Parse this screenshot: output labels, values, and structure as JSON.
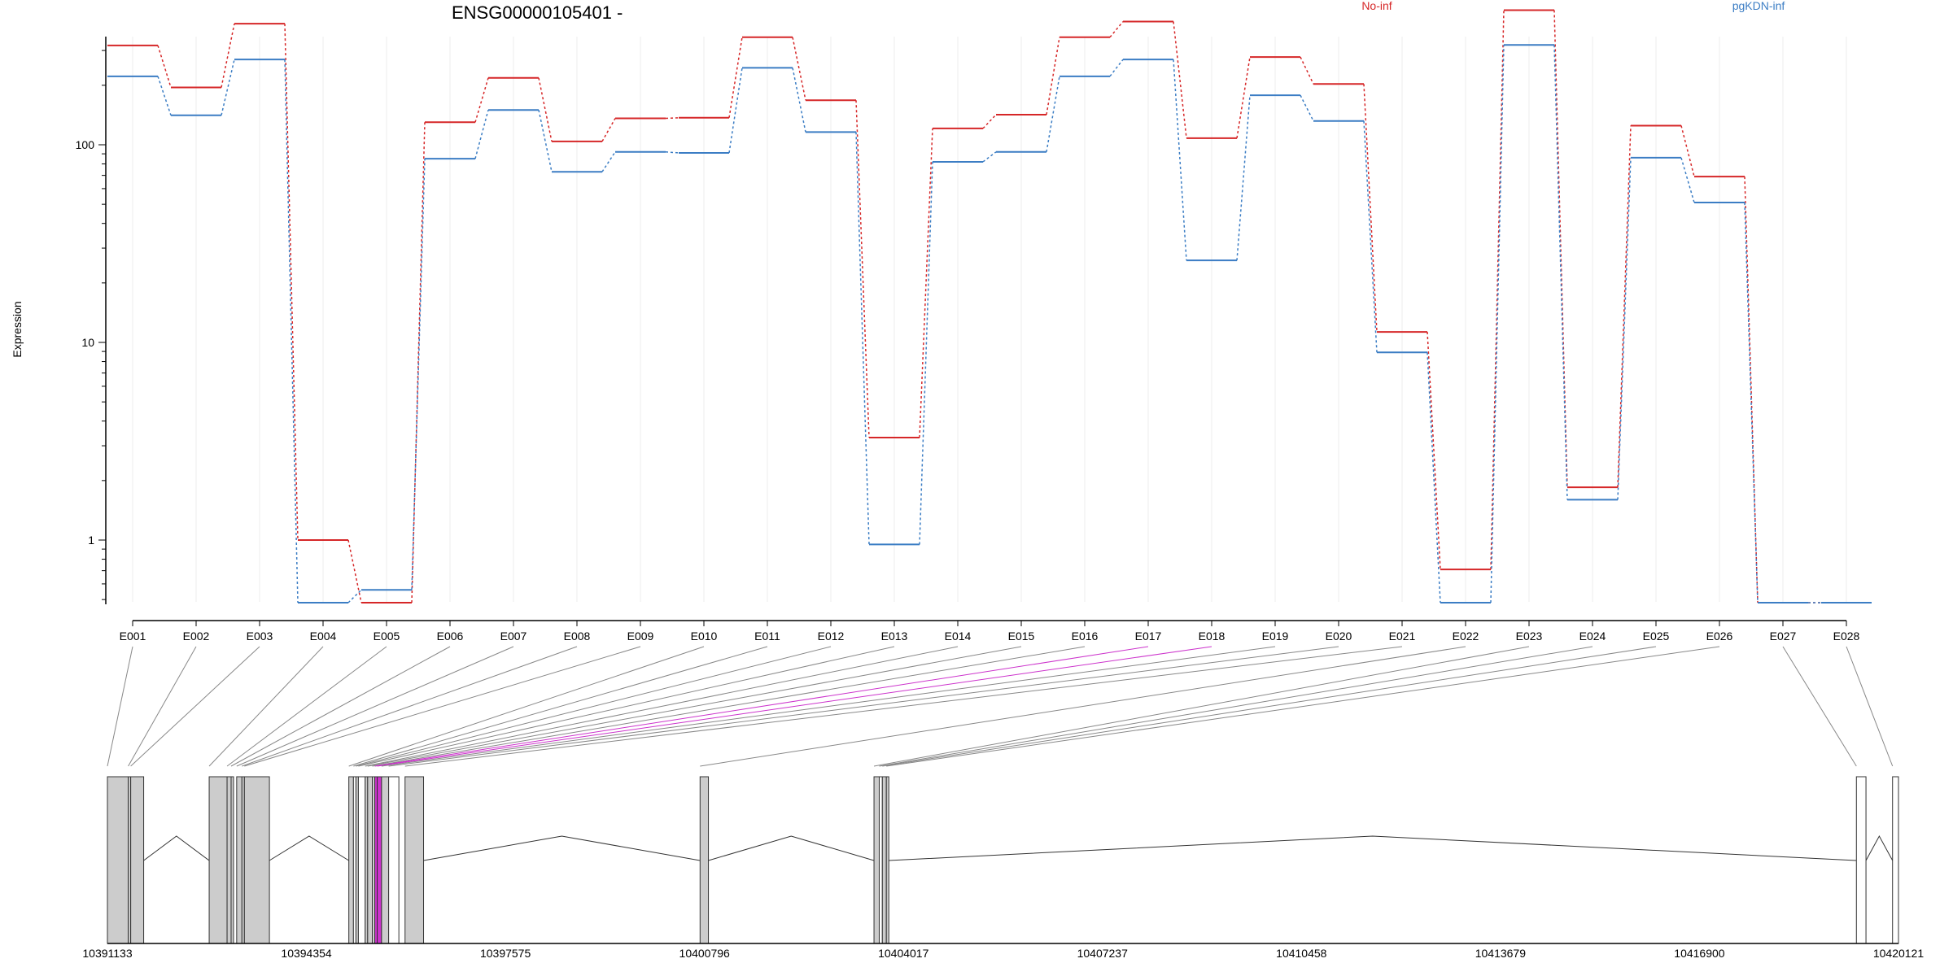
{
  "chart_data": {
    "type": "line",
    "title": "ENSG00000105401 -",
    "ylabel": "Expression",
    "y_scale": "log",
    "yticks": [
      1,
      10,
      100
    ],
    "grid": "vertical",
    "legend_position": "top",
    "categories": [
      "E001",
      "E002",
      "E003",
      "E004",
      "E005",
      "E006",
      "E007",
      "E008",
      "E009",
      "E010",
      "E011",
      "E012",
      "E013",
      "E014",
      "E015",
      "E016",
      "E017",
      "E018",
      "E019",
      "E020",
      "E021",
      "E022",
      "E023",
      "E024",
      "E025",
      "E026",
      "E027",
      "E028"
    ],
    "series": [
      {
        "name": "No-inf",
        "color": "#d62728",
        "values": [
          318,
          195,
          410,
          1.0,
          0.45,
          130,
          218,
          104,
          136,
          137,
          350,
          168,
          3.3,
          121,
          142,
          350,
          420,
          108,
          278,
          203,
          11.3,
          0.71,
          480,
          1.85,
          125,
          69,
          0.45,
          0.45
        ]
      },
      {
        "name": "pgKDN-inf",
        "color": "#3b7dc4",
        "values": [
          222,
          141,
          270,
          0.45,
          0.56,
          85,
          150,
          73,
          92,
          91,
          245,
          116,
          0.95,
          82,
          92,
          222,
          270,
          26,
          178,
          132,
          8.9,
          0.45,
          320,
          1.6,
          86,
          51,
          0.45,
          0.45
        ]
      }
    ],
    "genomic_axis": {
      "ticks": [
        "10391133",
        "10394354",
        "10397575",
        "10400796",
        "10404017",
        "10407237",
        "10410458",
        "10413679",
        "10416900",
        "10420121"
      ],
      "range": [
        10391133,
        10420121
      ]
    },
    "exons": [
      {
        "id": "E001",
        "start": 10391133,
        "end": 10391470,
        "fill": "#cccccc"
      },
      {
        "id": "E002",
        "start": 10391470,
        "end": 10391510,
        "fill": "#cccccc"
      },
      {
        "id": "E003",
        "start": 10391510,
        "end": 10391720,
        "fill": "#cccccc"
      },
      {
        "id": "E004",
        "start": 10392780,
        "end": 10393070,
        "fill": "#cccccc"
      },
      {
        "id": "E005",
        "start": 10393070,
        "end": 10393135,
        "fill": "#cccccc"
      },
      {
        "id": "E006",
        "start": 10393135,
        "end": 10393160,
        "fill": "#cccccc"
      },
      {
        "id": "E007",
        "start": 10393225,
        "end": 10393310,
        "fill": "#cccccc"
      },
      {
        "id": "E008",
        "start": 10393310,
        "end": 10393350,
        "fill": "#cccccc"
      },
      {
        "id": "E009",
        "start": 10393350,
        "end": 10393755,
        "fill": "#cccccc"
      },
      {
        "id": "E010",
        "start": 10395040,
        "end": 10395115,
        "fill": "#cccccc"
      },
      {
        "id": "E011",
        "start": 10395115,
        "end": 10395155,
        "fill": "#ffffff"
      },
      {
        "id": "E012",
        "start": 10395155,
        "end": 10395195,
        "fill": "#cccccc"
      },
      {
        "id": "E013",
        "start": 10395195,
        "end": 10395305,
        "fill": "#ffffff"
      },
      {
        "id": "E014",
        "start": 10395305,
        "end": 10395345,
        "fill": "#cccccc"
      },
      {
        "id": "E015",
        "start": 10395345,
        "end": 10395420,
        "fill": "#cccccc"
      },
      {
        "id": "E016",
        "start": 10395420,
        "end": 10395460,
        "fill": "#cccccc"
      },
      {
        "id": "E017",
        "start": 10395460,
        "end": 10395500,
        "fill": "#cc33cc"
      },
      {
        "id": "E018",
        "start": 10395500,
        "end": 10395570,
        "fill": "#cc33cc"
      },
      {
        "id": "E019",
        "start": 10395570,
        "end": 10395685,
        "fill": "#cccccc"
      },
      {
        "id": "E020",
        "start": 10395685,
        "end": 10395850,
        "fill": "#ffffff"
      },
      {
        "id": "E021",
        "start": 10395950,
        "end": 10396250,
        "fill": "#cccccc"
      },
      {
        "id": "E022",
        "start": 10400725,
        "end": 10400860,
        "fill": "#cccccc"
      },
      {
        "id": "E023",
        "start": 10403540,
        "end": 10403625,
        "fill": "#cccccc"
      },
      {
        "id": "E024",
        "start": 10403625,
        "end": 10403675,
        "fill": "#ffffff"
      },
      {
        "id": "E025",
        "start": 10403675,
        "end": 10403740,
        "fill": "#cccccc"
      },
      {
        "id": "E026",
        "start": 10403740,
        "end": 10403780,
        "fill": "#cccccc"
      },
      {
        "id": "E027",
        "start": 10419440,
        "end": 10419595,
        "fill": "#ffffff"
      },
      {
        "id": "E028",
        "start": 10420025,
        "end": 10420121,
        "fill": "#ffffff"
      }
    ],
    "introns": [
      [
        10391720,
        10392780
      ],
      [
        10393755,
        10395040
      ],
      [
        10396250,
        10400725
      ],
      [
        10400860,
        10403540
      ],
      [
        10403780,
        10419440
      ],
      [
        10419595,
        10420025
      ]
    ],
    "highlight_color": "#cc33cc",
    "highlighted_exons": [
      "E017",
      "E018"
    ]
  }
}
